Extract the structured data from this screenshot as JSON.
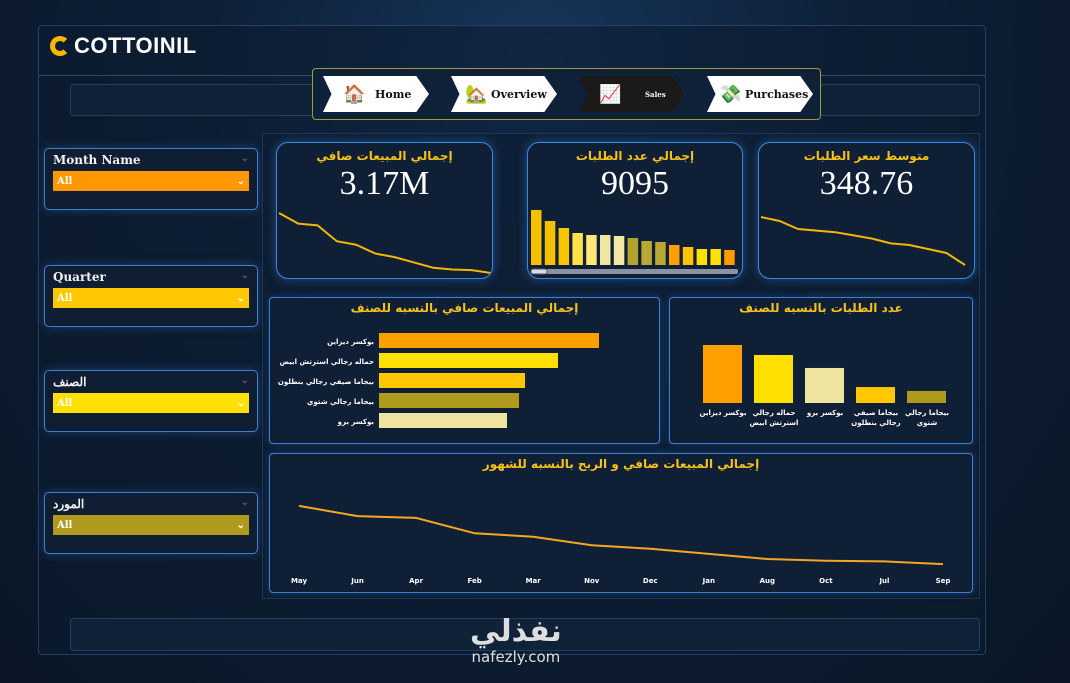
{
  "logo": {
    "text": "COTTOINIL"
  },
  "nav": [
    {
      "label": "Home",
      "icon": "house-icon"
    },
    {
      "label": "Overview",
      "icon": "orange-house-icon"
    },
    {
      "label": "Sales",
      "icon": "sales-chart-hand-icon",
      "active": true
    },
    {
      "label": "Purchases",
      "icon": "money-hands-icon"
    }
  ],
  "slicers": [
    {
      "title": "Month Name",
      "value": "All",
      "color": "#ff9800"
    },
    {
      "title": "Quarter",
      "value": "All",
      "color": "#ffc800"
    },
    {
      "title": "الصنف",
      "value": "All",
      "color": "#ffe000"
    },
    {
      "title": "المورد",
      "value": "All",
      "color": "#b09a1e"
    }
  ],
  "kpis": [
    {
      "title": "إجمالي المبيعات صافي",
      "value": "3.17M"
    },
    {
      "title": "إجمالي عدد الطلبات",
      "value": "9095"
    },
    {
      "title": "متوسط سعر الطلبات",
      "value": "348.76"
    }
  ],
  "colors": {
    "accent": "#f6c21a",
    "border": "#3a86e0",
    "line": "#f5a623"
  },
  "watermark": {
    "arabic": "نفذلي",
    "latin": "nafezly.com"
  },
  "chart_data": [
    {
      "id": "kpi-sales-spark",
      "type": "line",
      "values": [
        370,
        340,
        335,
        290,
        280,
        255,
        245,
        230,
        215,
        210,
        208,
        200
      ]
    },
    {
      "id": "kpi-orders-bars",
      "type": "bar",
      "values": [
        55,
        44,
        37,
        32,
        30,
        30,
        29,
        27,
        24,
        23,
        20,
        18,
        16,
        16,
        15
      ],
      "colors": [
        "#f5c000",
        "#f5c000",
        "#f7c600",
        "#ffe24a",
        "#fde776",
        "#efe6a0",
        "#f1e8a8",
        "#b3a22c",
        "#b9a933",
        "#b9a933",
        "#ff9f00",
        "#ffc400",
        "#ffe000",
        "#ffe000",
        "#ff9a00"
      ]
    },
    {
      "id": "kpi-avg-spark",
      "type": "line",
      "values": [
        395,
        390,
        380,
        378,
        376,
        372,
        368,
        362,
        360,
        355,
        350,
        335
      ]
    },
    {
      "id": "sales-by-category",
      "type": "bar",
      "orientation": "horizontal",
      "title": "إجمالي المبيعات صافي بالنسبه للصنف",
      "categories": [
        "بوكسر ديزاين",
        "حماله رجالي استرتش ابيض",
        "بيجاما صيفي رجالي بنطلون",
        "بيجاما رجالي شتوي",
        "بوكسر برو"
      ],
      "values": [
        880,
        716,
        584,
        560,
        512
      ],
      "colors": [
        "#ff9f00",
        "#ffe000",
        "#ffc800",
        "#b09a1e",
        "#efe3a0"
      ]
    },
    {
      "id": "orders-by-category",
      "type": "bar",
      "title": "عدد الطلبات بالنسبه للصنف",
      "categories": [
        "بوكسر ديزاين",
        "حماله رجالي استرتش ابيض",
        "بوكسر برو",
        "بيجاما صيفي رجالي بنطلون",
        "بيجاما رجالي شتوي"
      ],
      "values": [
        3130,
        2590,
        1890,
        860,
        650
      ],
      "colors": [
        "#ff9f00",
        "#ffe000",
        "#efe3a0",
        "#ffc800",
        "#b09a1e"
      ]
    },
    {
      "id": "sales-by-month",
      "type": "line",
      "title": "إجمالي المبيعات صافي و الربح بالنسبه للشهور",
      "categories": [
        "May",
        "Jun",
        "Apr",
        "Feb",
        "Mar",
        "Nov",
        "Dec",
        "Jan",
        "Aug",
        "Oct",
        "Jul",
        "Sep"
      ],
      "values": [
        370,
        340,
        335,
        290,
        280,
        255,
        245,
        230,
        215,
        210,
        208,
        200
      ],
      "ylim": [
        180,
        390
      ],
      "grid": false
    }
  ]
}
